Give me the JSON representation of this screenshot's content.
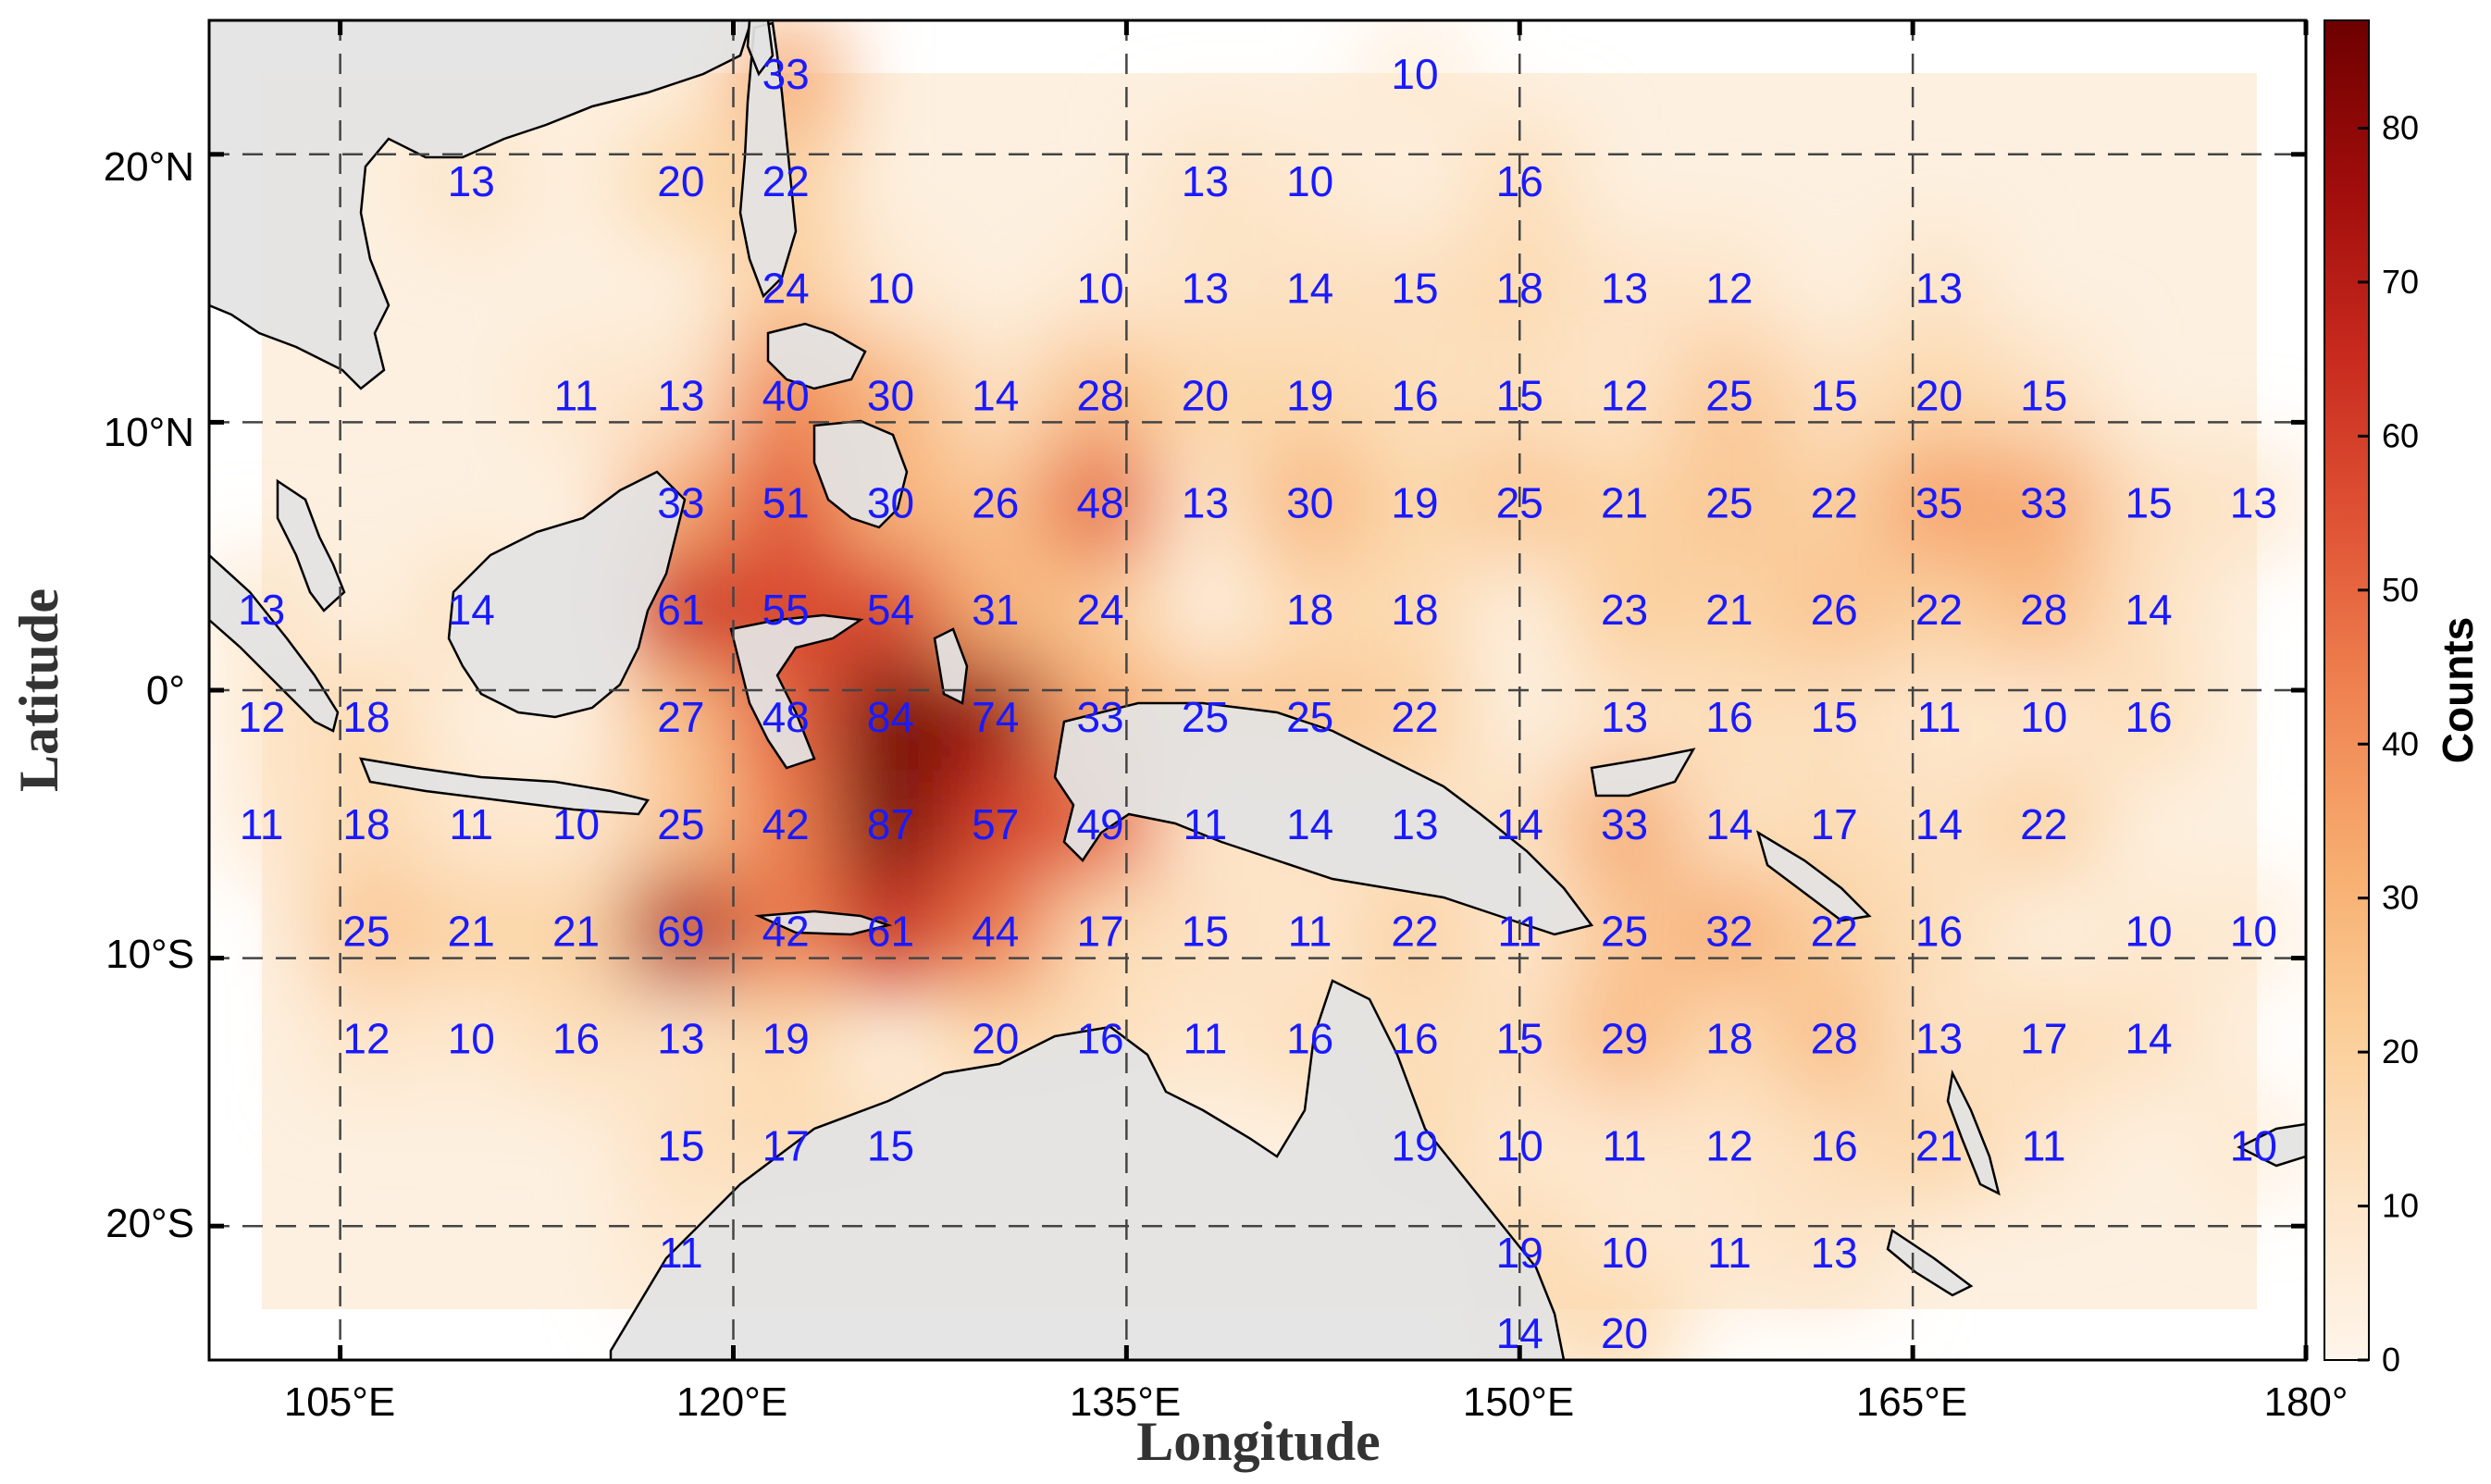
{
  "axes": {
    "xlabel": "Longitude",
    "ylabel": "Latitude",
    "lon_ticks": [
      "105°E",
      "120°E",
      "135°E",
      "150°E",
      "165°E",
      "180°"
    ],
    "lat_ticks": [
      "20°N",
      "10°N",
      "0°",
      "10°S",
      "20°S"
    ]
  },
  "colorbar": {
    "title": "Counts",
    "ticks": [
      "0",
      "10",
      "20",
      "30",
      "40",
      "50",
      "60",
      "70",
      "80"
    ],
    "min": 0,
    "max": 87
  },
  "colors": {
    "land": "#e3e3e3",
    "ocean": "#ffffff",
    "label": "#1a1aff",
    "heat_low": "#fff5eb",
    "heat_high": "#7f0000"
  },
  "chart_data": {
    "type": "heatmap",
    "x_range_deg": [
      100,
      180
    ],
    "y_range_deg": [
      -25,
      25
    ],
    "x_tick_values": [
      105,
      120,
      135,
      150,
      165,
      180
    ],
    "y_tick_values": [
      20,
      10,
      0,
      -10,
      -20
    ],
    "grid": true,
    "points": [
      {
        "lon": 122,
        "lat": 23,
        "v": 33
      },
      {
        "lon": 146,
        "lat": 23,
        "v": 10
      },
      {
        "lon": 110,
        "lat": 19,
        "v": 13
      },
      {
        "lon": 118,
        "lat": 19,
        "v": 20
      },
      {
        "lon": 122,
        "lat": 19,
        "v": 22
      },
      {
        "lon": 138,
        "lat": 19,
        "v": 13
      },
      {
        "lon": 142,
        "lat": 19,
        "v": 10
      },
      {
        "lon": 150,
        "lat": 19,
        "v": 16
      },
      {
        "lon": 122,
        "lat": 15,
        "v": 24
      },
      {
        "lon": 126,
        "lat": 15,
        "v": 10
      },
      {
        "lon": 134,
        "lat": 15,
        "v": 10
      },
      {
        "lon": 138,
        "lat": 15,
        "v": 13
      },
      {
        "lon": 142,
        "lat": 15,
        "v": 14
      },
      {
        "lon": 146,
        "lat": 15,
        "v": 15
      },
      {
        "lon": 150,
        "lat": 15,
        "v": 18
      },
      {
        "lon": 154,
        "lat": 15,
        "v": 13
      },
      {
        "lon": 158,
        "lat": 15,
        "v": 12
      },
      {
        "lon": 166,
        "lat": 15,
        "v": 13
      },
      {
        "lon": 114,
        "lat": 11,
        "v": 11
      },
      {
        "lon": 118,
        "lat": 11,
        "v": 13
      },
      {
        "lon": 122,
        "lat": 11,
        "v": 40
      },
      {
        "lon": 126,
        "lat": 11,
        "v": 30
      },
      {
        "lon": 130,
        "lat": 11,
        "v": 14
      },
      {
        "lon": 134,
        "lat": 11,
        "v": 28
      },
      {
        "lon": 138,
        "lat": 11,
        "v": 20
      },
      {
        "lon": 142,
        "lat": 11,
        "v": 19
      },
      {
        "lon": 146,
        "lat": 11,
        "v": 16
      },
      {
        "lon": 150,
        "lat": 11,
        "v": 15
      },
      {
        "lon": 154,
        "lat": 11,
        "v": 12
      },
      {
        "lon": 158,
        "lat": 11,
        "v": 25
      },
      {
        "lon": 162,
        "lat": 11,
        "v": 15
      },
      {
        "lon": 166,
        "lat": 11,
        "v": 20
      },
      {
        "lon": 170,
        "lat": 11,
        "v": 15
      },
      {
        "lon": 118,
        "lat": 7,
        "v": 33
      },
      {
        "lon": 122,
        "lat": 7,
        "v": 51
      },
      {
        "lon": 126,
        "lat": 7,
        "v": 30
      },
      {
        "lon": 130,
        "lat": 7,
        "v": 26
      },
      {
        "lon": 134,
        "lat": 7,
        "v": 48
      },
      {
        "lon": 138,
        "lat": 7,
        "v": 13
      },
      {
        "lon": 142,
        "lat": 7,
        "v": 30
      },
      {
        "lon": 146,
        "lat": 7,
        "v": 19
      },
      {
        "lon": 150,
        "lat": 7,
        "v": 25
      },
      {
        "lon": 154,
        "lat": 7,
        "v": 21
      },
      {
        "lon": 158,
        "lat": 7,
        "v": 25
      },
      {
        "lon": 162,
        "lat": 7,
        "v": 22
      },
      {
        "lon": 166,
        "lat": 7,
        "v": 35
      },
      {
        "lon": 170,
        "lat": 7,
        "v": 33
      },
      {
        "lon": 174,
        "lat": 7,
        "v": 15
      },
      {
        "lon": 178,
        "lat": 7,
        "v": 13
      },
      {
        "lon": 102,
        "lat": 3,
        "v": 13
      },
      {
        "lon": 110,
        "lat": 3,
        "v": 14
      },
      {
        "lon": 118,
        "lat": 3,
        "v": 61
      },
      {
        "lon": 122,
        "lat": 3,
        "v": 55
      },
      {
        "lon": 126,
        "lat": 3,
        "v": 54
      },
      {
        "lon": 130,
        "lat": 3,
        "v": 31
      },
      {
        "lon": 134,
        "lat": 3,
        "v": 24
      },
      {
        "lon": 142,
        "lat": 3,
        "v": 18
      },
      {
        "lon": 146,
        "lat": 3,
        "v": 18
      },
      {
        "lon": 154,
        "lat": 3,
        "v": 23
      },
      {
        "lon": 158,
        "lat": 3,
        "v": 21
      },
      {
        "lon": 162,
        "lat": 3,
        "v": 26
      },
      {
        "lon": 166,
        "lat": 3,
        "v": 22
      },
      {
        "lon": 170,
        "lat": 3,
        "v": 28
      },
      {
        "lon": 174,
        "lat": 3,
        "v": 14
      },
      {
        "lon": 102,
        "lat": -1,
        "v": 12
      },
      {
        "lon": 106,
        "lat": -1,
        "v": 18
      },
      {
        "lon": 118,
        "lat": -1,
        "v": 27
      },
      {
        "lon": 122,
        "lat": -1,
        "v": 48
      },
      {
        "lon": 126,
        "lat": -1,
        "v": 84
      },
      {
        "lon": 130,
        "lat": -1,
        "v": 74
      },
      {
        "lon": 134,
        "lat": -1,
        "v": 33
      },
      {
        "lon": 138,
        "lat": -1,
        "v": 25
      },
      {
        "lon": 142,
        "lat": -1,
        "v": 25
      },
      {
        "lon": 146,
        "lat": -1,
        "v": 22
      },
      {
        "lon": 154,
        "lat": -1,
        "v": 13
      },
      {
        "lon": 158,
        "lat": -1,
        "v": 16
      },
      {
        "lon": 162,
        "lat": -1,
        "v": 15
      },
      {
        "lon": 166,
        "lat": -1,
        "v": 11
      },
      {
        "lon": 170,
        "lat": -1,
        "v": 10
      },
      {
        "lon": 174,
        "lat": -1,
        "v": 16
      },
      {
        "lon": 102,
        "lat": -5,
        "v": 11
      },
      {
        "lon": 106,
        "lat": -5,
        "v": 18
      },
      {
        "lon": 110,
        "lat": -5,
        "v": 11
      },
      {
        "lon": 114,
        "lat": -5,
        "v": 10
      },
      {
        "lon": 118,
        "lat": -5,
        "v": 25
      },
      {
        "lon": 122,
        "lat": -5,
        "v": 42
      },
      {
        "lon": 126,
        "lat": -5,
        "v": 87
      },
      {
        "lon": 130,
        "lat": -5,
        "v": 57
      },
      {
        "lon": 134,
        "lat": -5,
        "v": 49
      },
      {
        "lon": 138,
        "lat": -5,
        "v": 11
      },
      {
        "lon": 142,
        "lat": -5,
        "v": 14
      },
      {
        "lon": 146,
        "lat": -5,
        "v": 13
      },
      {
        "lon": 150,
        "lat": -5,
        "v": 14
      },
      {
        "lon": 154,
        "lat": -5,
        "v": 33
      },
      {
        "lon": 158,
        "lat": -5,
        "v": 14
      },
      {
        "lon": 162,
        "lat": -5,
        "v": 17
      },
      {
        "lon": 166,
        "lat": -5,
        "v": 14
      },
      {
        "lon": 170,
        "lat": -5,
        "v": 22
      },
      {
        "lon": 106,
        "lat": -9,
        "v": 25
      },
      {
        "lon": 110,
        "lat": -9,
        "v": 21
      },
      {
        "lon": 114,
        "lat": -9,
        "v": 21
      },
      {
        "lon": 118,
        "lat": -9,
        "v": 69
      },
      {
        "lon": 122,
        "lat": -9,
        "v": 42
      },
      {
        "lon": 126,
        "lat": -9,
        "v": 61
      },
      {
        "lon": 130,
        "lat": -9,
        "v": 44
      },
      {
        "lon": 134,
        "lat": -9,
        "v": 17
      },
      {
        "lon": 138,
        "lat": -9,
        "v": 15
      },
      {
        "lon": 142,
        "lat": -9,
        "v": 11
      },
      {
        "lon": 146,
        "lat": -9,
        "v": 22
      },
      {
        "lon": 150,
        "lat": -9,
        "v": 11
      },
      {
        "lon": 154,
        "lat": -9,
        "v": 25
      },
      {
        "lon": 158,
        "lat": -9,
        "v": 32
      },
      {
        "lon": 162,
        "lat": -9,
        "v": 22
      },
      {
        "lon": 166,
        "lat": -9,
        "v": 16
      },
      {
        "lon": 174,
        "lat": -9,
        "v": 10
      },
      {
        "lon": 178,
        "lat": -9,
        "v": 10
      },
      {
        "lon": 106,
        "lat": -13,
        "v": 12
      },
      {
        "lon": 110,
        "lat": -13,
        "v": 10
      },
      {
        "lon": 114,
        "lat": -13,
        "v": 16
      },
      {
        "lon": 118,
        "lat": -13,
        "v": 13
      },
      {
        "lon": 122,
        "lat": -13,
        "v": 19
      },
      {
        "lon": 130,
        "lat": -13,
        "v": 20
      },
      {
        "lon": 134,
        "lat": -13,
        "v": 16
      },
      {
        "lon": 138,
        "lat": -13,
        "v": 11
      },
      {
        "lon": 142,
        "lat": -13,
        "v": 16
      },
      {
        "lon": 146,
        "lat": -13,
        "v": 16
      },
      {
        "lon": 150,
        "lat": -13,
        "v": 15
      },
      {
        "lon": 154,
        "lat": -13,
        "v": 29
      },
      {
        "lon": 158,
        "lat": -13,
        "v": 18
      },
      {
        "lon": 162,
        "lat": -13,
        "v": 28
      },
      {
        "lon": 166,
        "lat": -13,
        "v": 13
      },
      {
        "lon": 170,
        "lat": -13,
        "v": 17
      },
      {
        "lon": 174,
        "lat": -13,
        "v": 14
      },
      {
        "lon": 118,
        "lat": -17,
        "v": 15
      },
      {
        "lon": 122,
        "lat": -17,
        "v": 17
      },
      {
        "lon": 126,
        "lat": -17,
        "v": 15
      },
      {
        "lon": 146,
        "lat": -17,
        "v": 19
      },
      {
        "lon": 150,
        "lat": -17,
        "v": 10
      },
      {
        "lon": 154,
        "lat": -17,
        "v": 11
      },
      {
        "lon": 158,
        "lat": -17,
        "v": 12
      },
      {
        "lon": 162,
        "lat": -17,
        "v": 16
      },
      {
        "lon": 166,
        "lat": -17,
        "v": 21
      },
      {
        "lon": 170,
        "lat": -17,
        "v": 11
      },
      {
        "lon": 178,
        "lat": -17,
        "v": 10
      },
      {
        "lon": 118,
        "lat": -21,
        "v": 11
      },
      {
        "lon": 150,
        "lat": -21,
        "v": 19
      },
      {
        "lon": 154,
        "lat": -21,
        "v": 10
      },
      {
        "lon": 158,
        "lat": -21,
        "v": 11
      },
      {
        "lon": 162,
        "lat": -21,
        "v": 13
      },
      {
        "lon": 150,
        "lat": -24,
        "v": 14
      },
      {
        "lon": 154,
        "lat": -24,
        "v": 20
      }
    ]
  }
}
